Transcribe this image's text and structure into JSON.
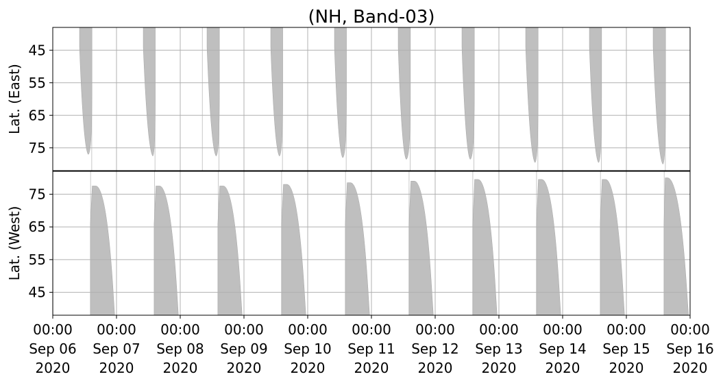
{
  "chart_data": {
    "type": "area",
    "title": "(NH, Band-03)",
    "x_range": [
      "2020-09-06 00:00",
      "2020-09-16 00:00"
    ],
    "x_tick_labels": [
      {
        "time": "00:00",
        "date": "Sep 06",
        "year": "2020"
      },
      {
        "time": "00:00",
        "date": "Sep 07",
        "year": "2020"
      },
      {
        "time": "00:00",
        "date": "Sep 08",
        "year": "2020"
      },
      {
        "time": "00:00",
        "date": "Sep 09",
        "year": "2020"
      },
      {
        "time": "00:00",
        "date": "Sep 10",
        "year": "2020"
      },
      {
        "time": "00:00",
        "date": "Sep 11",
        "year": "2020"
      },
      {
        "time": "00:00",
        "date": "Sep 12",
        "year": "2020"
      },
      {
        "time": "00:00",
        "date": "Sep 13",
        "year": "2020"
      },
      {
        "time": "00:00",
        "date": "Sep 14",
        "year": "2020"
      },
      {
        "time": "00:00",
        "date": "Sep 15",
        "year": "2020"
      },
      {
        "time": "00:00",
        "date": "Sep 16",
        "year": "2020"
      }
    ],
    "grid": true,
    "color": "#bfbfbf",
    "panels": [
      {
        "name": "east",
        "ylabel": "Lat. (East)",
        "ylim": [
          38,
          82
        ],
        "y_inverted": true,
        "yticks": [
          45,
          55,
          65,
          75
        ],
        "lat_top": 38,
        "coverage": [
          {
            "start": "2020-09-06 10:05",
            "end": "2020-09-06 14:45",
            "peak": "2020-09-06 13:20",
            "max_lat": 77.0
          },
          {
            "start": "2020-09-07 10:05",
            "end": "2020-09-07 14:35",
            "peak": "2020-09-07 13:40",
            "max_lat": 77.5
          },
          {
            "start": "2020-09-08 10:05",
            "end": "2020-09-08 14:45",
            "peak": "2020-09-08 13:30",
            "max_lat": 77.5
          },
          {
            "start": "2020-09-09 10:05",
            "end": "2020-09-09 14:35",
            "peak": "2020-09-09 13:20",
            "max_lat": 77.5
          },
          {
            "start": "2020-09-10 10:05",
            "end": "2020-09-10 14:35",
            "peak": "2020-09-10 13:10",
            "max_lat": 78.0
          },
          {
            "start": "2020-09-11 10:05",
            "end": "2020-09-11 14:40",
            "peak": "2020-09-11 13:05",
            "max_lat": 78.5
          },
          {
            "start": "2020-09-12 10:05",
            "end": "2020-09-12 14:45",
            "peak": "2020-09-12 13:10",
            "max_lat": 78.5
          },
          {
            "start": "2020-09-13 10:05",
            "end": "2020-09-13 14:45",
            "peak": "2020-09-13 13:35",
            "max_lat": 79.5
          },
          {
            "start": "2020-09-14 10:05",
            "end": "2020-09-14 14:40",
            "peak": "2020-09-14 13:30",
            "max_lat": 79.5
          },
          {
            "start": "2020-09-15 10:05",
            "end": "2020-09-15 14:45",
            "peak": "2020-09-15 13:45",
            "max_lat": 80.0
          }
        ],
        "swath_lines": [
          "2020-09-06 14:40",
          "2020-09-07 14:30",
          "2020-09-08 08:20",
          "2020-09-08 14:35",
          "2020-09-09 14:30",
          "2020-09-10 14:30",
          "2020-09-11 14:35",
          "2020-09-12 14:35",
          "2020-09-13 14:40",
          "2020-09-14 14:35",
          "2020-09-15 14:40"
        ]
      },
      {
        "name": "west",
        "ylabel": "Lat. (West)",
        "ylim": [
          38,
          82
        ],
        "y_inverted": false,
        "yticks": [
          45,
          55,
          65,
          75
        ],
        "lat_bottom": 38,
        "coverage": [
          {
            "start": "2020-09-06 14:10",
            "end": "2020-09-06 23:50",
            "rise_end": "2020-09-06 16:10",
            "max_lat": 77.5,
            "edge_lat": 43
          },
          {
            "start": "2020-09-07 14:10",
            "end": "2020-09-07 23:50",
            "rise_end": "2020-09-07 16:10",
            "max_lat": 77.5,
            "edge_lat": 43
          },
          {
            "start": "2020-09-08 14:10",
            "end": "2020-09-08 23:50",
            "rise_end": "2020-09-08 16:10",
            "max_lat": 77.5,
            "edge_lat": 43
          },
          {
            "start": "2020-09-09 14:10",
            "end": "2020-09-09 23:50",
            "rise_end": "2020-09-09 16:10",
            "max_lat": 78.0,
            "edge_lat": 43
          },
          {
            "start": "2020-09-10 14:10",
            "end": "2020-09-10 23:50",
            "rise_end": "2020-09-10 16:10",
            "max_lat": 78.5,
            "edge_lat": 43
          },
          {
            "start": "2020-09-11 14:10",
            "end": "2020-09-11 23:50",
            "rise_end": "2020-09-11 16:10",
            "max_lat": 79.0,
            "edge_lat": 43
          },
          {
            "start": "2020-09-12 14:10",
            "end": "2020-09-12 23:50",
            "rise_end": "2020-09-12 16:10",
            "max_lat": 79.5,
            "edge_lat": 43
          },
          {
            "start": "2020-09-13 14:10",
            "end": "2020-09-13 23:50",
            "rise_end": "2020-09-13 16:10",
            "max_lat": 79.5,
            "edge_lat": 43
          },
          {
            "start": "2020-09-14 14:10",
            "end": "2020-09-14 23:50",
            "rise_end": "2020-09-14 16:10",
            "max_lat": 79.5,
            "edge_lat": 43
          },
          {
            "start": "2020-09-15 14:10",
            "end": "2020-09-15 23:59",
            "rise_end": "2020-09-15 15:30",
            "max_lat": 80.0,
            "edge_lat": 43
          }
        ],
        "swath_lines": [
          "2020-09-06 00:05",
          "2020-09-06 14:15",
          "2020-09-07 14:20",
          "2020-09-08 14:20",
          "2020-09-09 14:10",
          "2020-09-10 14:15",
          "2020-09-11 14:10",
          "2020-09-12 14:10",
          "2020-09-13 14:10",
          "2020-09-14 14:15",
          "2020-09-15 14:15"
        ]
      }
    ]
  }
}
